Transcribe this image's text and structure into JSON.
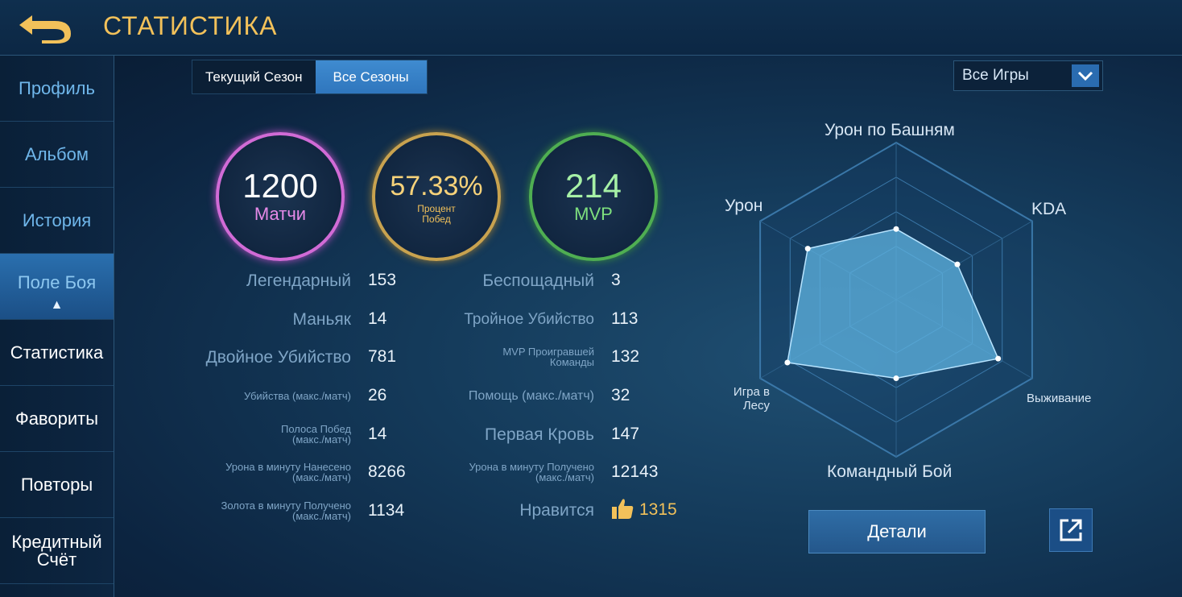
{
  "header": {
    "title": "СТАТИСТИКА"
  },
  "sidebar": {
    "items": [
      {
        "label": "Профиль"
      },
      {
        "label": "Альбом"
      },
      {
        "label": "История"
      },
      {
        "label": "Поле Боя"
      },
      {
        "label": "Статистика"
      },
      {
        "label": "Фавориты"
      },
      {
        "label": "Повторы"
      },
      {
        "label": "Кредитный\nСчёт"
      }
    ]
  },
  "tabs": [
    {
      "label": "Текущий Сезон"
    },
    {
      "label": "Все Сезоны"
    }
  ],
  "filter": {
    "selected": "Все Игры"
  },
  "circles": {
    "matches": {
      "value": "1200",
      "label": "Матчи"
    },
    "winrate": {
      "value": "57.33%",
      "label": "Процент Побед"
    },
    "mvp": {
      "value": "214",
      "label": "MVP"
    }
  },
  "stats_left": [
    {
      "label": "Легендарный",
      "value": "153"
    },
    {
      "label": "Маньяк",
      "value": "14"
    },
    {
      "label": "Двойное Убийство",
      "value": "781"
    },
    {
      "label": "Убийства (макс./матч)",
      "value": "26"
    },
    {
      "label": "Полоса Побед (макс./матч)",
      "value": "14"
    },
    {
      "label": "Урона в минуту Нанесено (макс./матч)",
      "value": "8266"
    },
    {
      "label": "Золота в минуту Получено (макс./матч)",
      "value": "1134"
    }
  ],
  "stats_right": [
    {
      "label": "Беспощадный",
      "value": "3"
    },
    {
      "label": "Тройное Убийство",
      "value": "113"
    },
    {
      "label": "MVP Проигравшей Команды",
      "value": "132"
    },
    {
      "label": "Помощь (макс./матч)",
      "value": "32"
    },
    {
      "label": "Первая Кровь",
      "value": "147"
    },
    {
      "label": "Урона в минуту Получено (макс./матч)",
      "value": "12143"
    },
    {
      "label": "Нравится",
      "value": "1315"
    }
  ],
  "radar": {
    "axes": [
      "Урон по Башням",
      "KDA",
      "Выживание",
      "Командный Бой",
      "Игра в Лесу",
      "Урон"
    ],
    "values": [
      0.45,
      0.45,
      0.75,
      0.5,
      0.8,
      0.65
    ]
  },
  "actions": {
    "details_label": "Детали"
  },
  "colors": {
    "accent_gold": "#f2c15a",
    "accent_blue": "#3f8bd0"
  }
}
